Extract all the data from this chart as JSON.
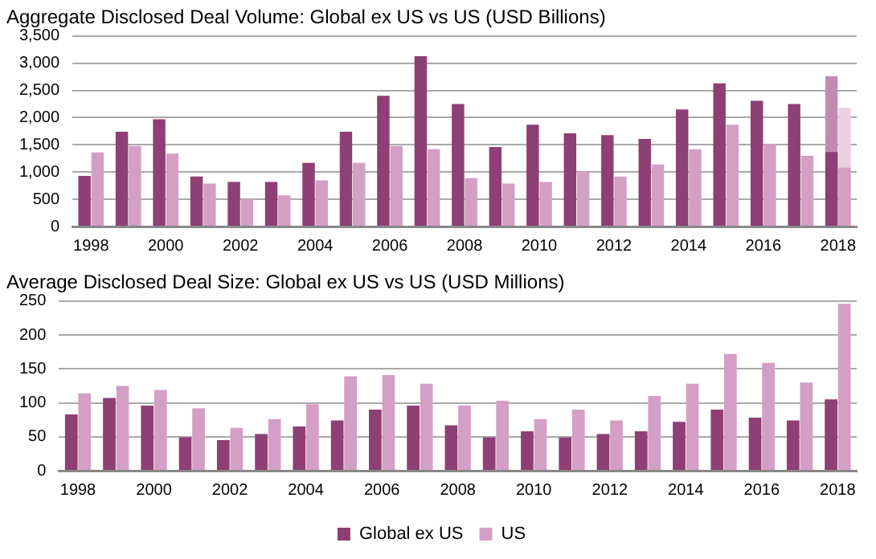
{
  "chart_data": [
    {
      "type": "bar",
      "title": "Aggregate Disclosed Deal Volume: Global ex US vs US (USD Billions)",
      "categories": [
        "1998",
        null,
        "2000",
        null,
        "2002",
        null,
        "2004",
        null,
        "2006",
        null,
        "2008",
        null,
        "2010",
        null,
        "2012",
        null,
        "2014",
        null,
        "2016",
        null,
        "2018"
      ],
      "series": [
        {
          "color": "#8e3f73",
          "values": [
            930,
            1740,
            1970,
            920,
            820,
            820,
            1170,
            1740,
            2400,
            3130,
            2250,
            1460,
            1870,
            1710,
            1680,
            1610,
            2150,
            2630,
            2310,
            2250,
            1370
          ]
        },
        {
          "color": "#d49fc4",
          "values": [
            1360,
            1480,
            1340,
            790,
            500,
            570,
            850,
            1170,
            1480,
            1420,
            890,
            790,
            820,
            1010,
            920,
            1140,
            1420,
            1870,
            1520,
            1300,
            1080
          ]
        },
        {
          "color": "#c08cae",
          "values": [
            null,
            null,
            null,
            null,
            null,
            null,
            null,
            null,
            null,
            null,
            null,
            null,
            null,
            null,
            null,
            null,
            null,
            null,
            null,
            null,
            2760
          ]
        },
        {
          "color": "#ead0e2",
          "values": [
            null,
            null,
            null,
            null,
            null,
            null,
            null,
            null,
            null,
            null,
            null,
            null,
            null,
            null,
            null,
            null,
            null,
            null,
            null,
            null,
            2180
          ]
        }
      ],
      "ylim": [
        0,
        3500
      ],
      "yticks": [
        0,
        {
          "value": 500,
          "label": "500"
        },
        {
          "value": 1000,
          "label": "1,000"
        },
        {
          "value": 1500,
          "label": "1,500"
        },
        {
          "value": 2000,
          "label": "2,000"
        },
        {
          "value": 2500,
          "label": "2,500"
        },
        {
          "value": 3000,
          "label": "3,000"
        },
        {
          "value": 3500,
          "label": "3,500"
        }
      ],
      "grid": "y",
      "legend": false
    },
    {
      "type": "bar",
      "title": "Average Disclosed Deal Size: Global ex US vs US (USD Millions)",
      "categories": [
        "1998",
        null,
        "2000",
        null,
        "2002",
        null,
        "2004",
        null,
        "2006",
        null,
        "2008",
        null,
        "2010",
        null,
        "2012",
        null,
        "2014",
        null,
        "2016",
        null,
        "2018"
      ],
      "series": [
        {
          "name": "Global ex US",
          "color": "#8e3f73",
          "values": [
            83,
            107,
            96,
            49,
            45,
            54,
            65,
            74,
            90,
            96,
            67,
            49,
            58,
            49,
            54,
            58,
            72,
            90,
            78,
            74,
            105
          ]
        },
        {
          "name": "US",
          "color": "#d49fc4",
          "values": [
            114,
            125,
            119,
            92,
            63,
            76,
            98,
            139,
            141,
            128,
            96,
            103,
            76,
            90,
            74,
            110,
            128,
            172,
            159,
            130,
            246
          ]
        }
      ],
      "ylim": [
        0,
        250
      ],
      "yticks": [
        0,
        50,
        100,
        150,
        200,
        250
      ],
      "grid": "y",
      "legend": "bottom"
    }
  ]
}
